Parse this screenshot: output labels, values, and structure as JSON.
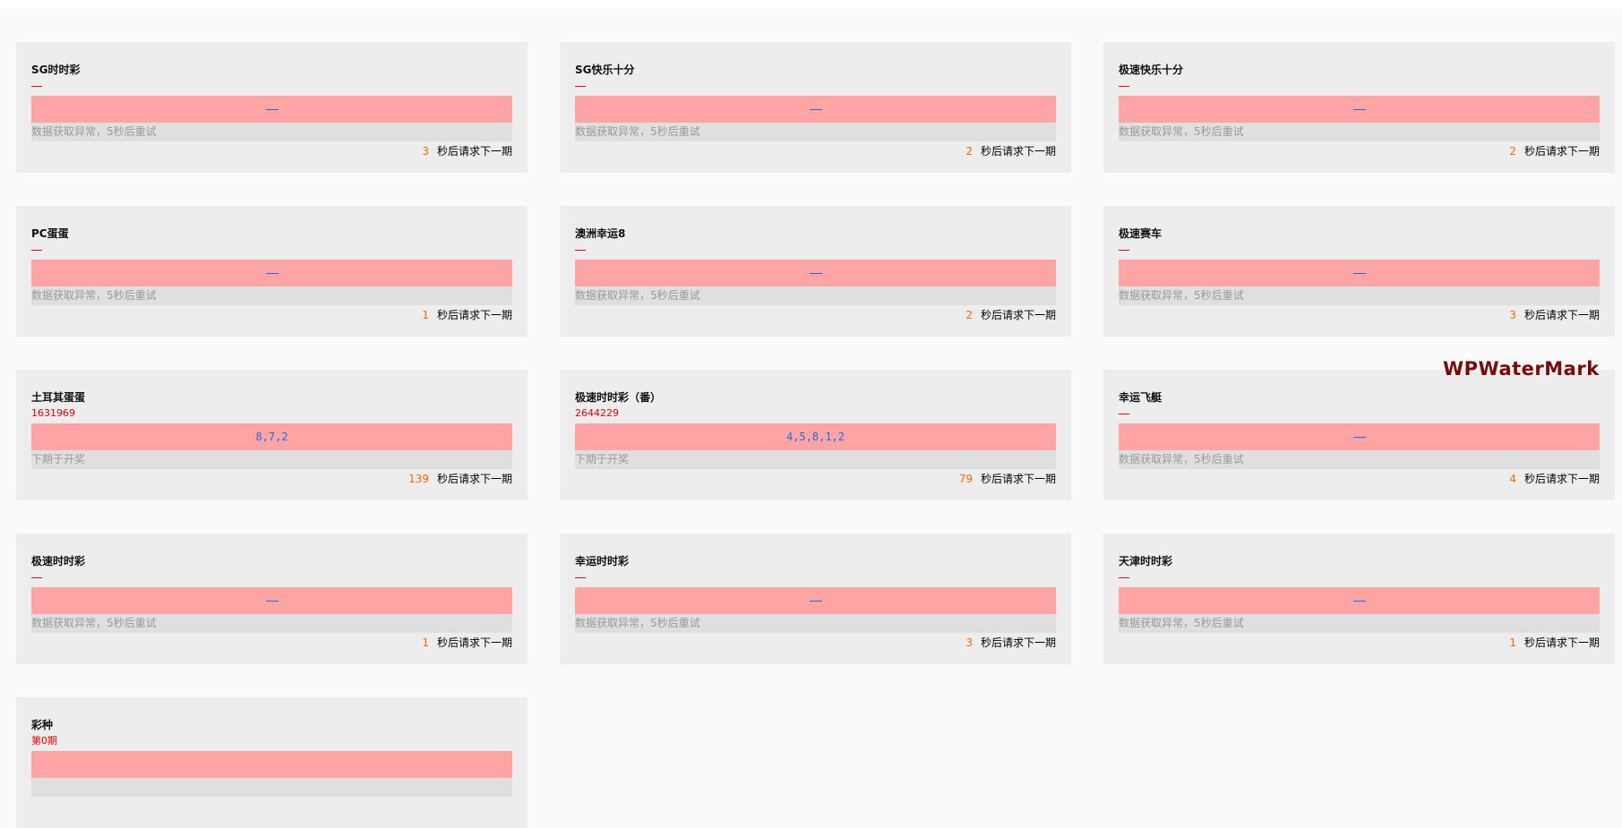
{
  "labels": {
    "countdown_suffix": "秒后请求下一期"
  },
  "watermark": "WPWaterMark",
  "colors": {
    "card_bg": "#ededed",
    "numbers_bg": "#ffa4a4",
    "status_bg": "#dfdfdf",
    "countdown_number": "#ff6600",
    "issue": "#ee0000",
    "numbers": "#1a6fe0"
  },
  "cards": [
    {
      "title": "SG时时彩",
      "issue": "—",
      "numbers": "—",
      "status": "数据获取异常，5秒后重试",
      "countdown": "3"
    },
    {
      "title": "SG快乐十分",
      "issue": "—",
      "numbers": "—",
      "status": "数据获取异常，5秒后重试",
      "countdown": "2"
    },
    {
      "title": "极速快乐十分",
      "issue": "—",
      "numbers": "—",
      "status": "数据获取异常，5秒后重试",
      "countdown": "2"
    },
    {
      "title": "PC蛋蛋",
      "issue": "—",
      "numbers": "—",
      "status": "数据获取异常，5秒后重试",
      "countdown": "1"
    },
    {
      "title": "澳洲幸运8",
      "issue": "—",
      "numbers": "—",
      "status": "数据获取异常，5秒后重试",
      "countdown": "2"
    },
    {
      "title": "极速赛车",
      "issue": "—",
      "numbers": "—",
      "status": "数据获取异常，5秒后重试",
      "countdown": "3"
    },
    {
      "title": "土耳其蛋蛋",
      "issue": "1631969",
      "numbers": "8,7,2",
      "status": "下期于开奖",
      "countdown": "139"
    },
    {
      "title": "极速时时彩（番）",
      "issue": "2644229",
      "numbers": "4,5,8,1,2",
      "status": "下期于开奖",
      "countdown": "79"
    },
    {
      "title": "幸运飞艇",
      "issue": "—",
      "numbers": "—",
      "status": "数据获取异常，5秒后重试",
      "countdown": "4"
    },
    {
      "title": "极速时时彩",
      "issue": "—",
      "numbers": "—",
      "status": "数据获取异常，5秒后重试",
      "countdown": "1"
    },
    {
      "title": "幸运时时彩",
      "issue": "—",
      "numbers": "—",
      "status": "数据获取异常，5秒后重试",
      "countdown": "3"
    },
    {
      "title": "天津时时彩",
      "issue": "—",
      "numbers": "—",
      "status": "数据获取异常，5秒后重试",
      "countdown": "1"
    },
    {
      "title": "彩种",
      "issue": "第0期",
      "numbers": "",
      "status": "",
      "countdown": ""
    }
  ]
}
